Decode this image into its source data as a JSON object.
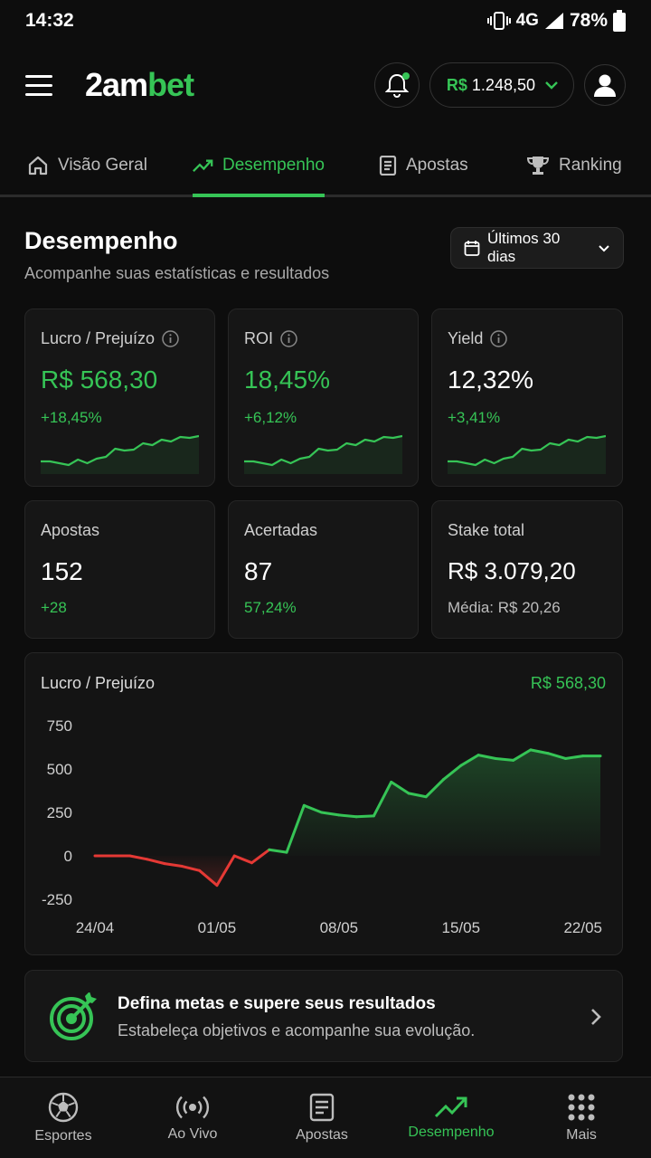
{
  "status_bar": {
    "time": "14:32",
    "network": "4G",
    "battery": "78%"
  },
  "header": {
    "logo_part1": "2am",
    "logo_part2": "bet",
    "balance_currency": "R$",
    "balance_amount": "1.248,50",
    "icons": {
      "menu": "hamburger-icon",
      "notifications": "bell-icon",
      "profile": "user-icon"
    }
  },
  "tabs": [
    {
      "label": "Visão Geral",
      "icon": "home-icon"
    },
    {
      "label": "Desempenho",
      "icon": "trending-up-icon",
      "active": true
    },
    {
      "label": "Apostas",
      "icon": "receipt-icon"
    },
    {
      "label": "Ranking",
      "icon": "trophy-icon"
    }
  ],
  "page": {
    "title": "Desempenho",
    "subtitle": "Acompanhe suas estatísticas e resultados",
    "range": "Últimos 30 dias"
  },
  "stats": [
    {
      "label": "Lucro / Prejuízo",
      "value": "R$ 568,30",
      "change": "+18,45%"
    },
    {
      "label": "ROI",
      "value": "18,45%",
      "change": "+6,12%"
    },
    {
      "label": "Yield",
      "value": "12,32%",
      "change": "+3,41%"
    },
    {
      "label": "Apostas",
      "value": "152",
      "change": "+28"
    },
    {
      "label": "Acertadas",
      "value": "87",
      "change": "57,24%"
    },
    {
      "label": "Stake total",
      "value": "R$ 3.079,20",
      "change": "Média: R$ 20,26"
    }
  ],
  "colors": {
    "accent": "#36c456",
    "negative": "#e53935",
    "background": "#0d0d0d",
    "card": "#161616"
  },
  "chart_data": {
    "type": "line",
    "title": "Lucro / Prejuízo",
    "total": "R$ 568,30",
    "ylim": [
      -250,
      750
    ],
    "y_ticks": [
      "750",
      "500",
      "250",
      "0",
      "-250"
    ],
    "x_ticks": [
      "24/04",
      "01/05",
      "08/05",
      "15/05",
      "22/05"
    ],
    "x": [
      "24/04",
      "25/04",
      "26/04",
      "27/04",
      "28/04",
      "29/04",
      "30/04",
      "01/05",
      "02/05",
      "03/05",
      "04/05",
      "05/05",
      "06/05",
      "07/05",
      "08/05",
      "09/05",
      "10/05",
      "11/05",
      "12/05",
      "13/05",
      "14/05",
      "15/05",
      "16/05",
      "17/05",
      "18/05",
      "19/05",
      "20/05",
      "21/05",
      "22/05",
      "23/05"
    ],
    "values": [
      0,
      0,
      0,
      -20,
      -45,
      -60,
      -85,
      -170,
      0,
      -40,
      35,
      20,
      290,
      250,
      235,
      225,
      230,
      425,
      360,
      340,
      440,
      520,
      580,
      560,
      550,
      610,
      590,
      560,
      575,
      575
    ],
    "negative_color": "#e53935",
    "positive_color": "#36c456"
  },
  "goal": {
    "title": "Defina metas e supere seus resultados",
    "text": "Estabeleça objetivos e acompanhe sua evolução.",
    "icon": "target-icon"
  },
  "bottom_nav": [
    {
      "label": "Esportes",
      "icon": "soccer-ball-icon"
    },
    {
      "label": "Ao Vivo",
      "icon": "broadcast-icon"
    },
    {
      "label": "Apostas",
      "icon": "ticket-icon"
    },
    {
      "label": "Desempenho",
      "icon": "trending-up-icon",
      "active": true
    },
    {
      "label": "Mais",
      "icon": "grid-icon"
    }
  ]
}
